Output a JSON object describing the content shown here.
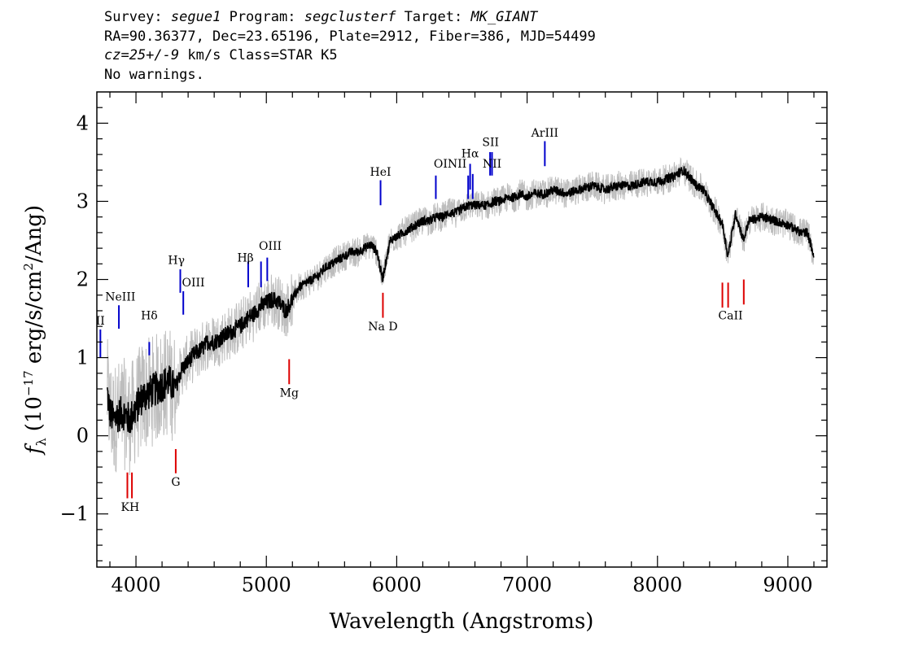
{
  "header": {
    "line1": {
      "survey_label": "Survey:",
      "survey": "segue1",
      "program_label": "Program:",
      "program": "segclusterf",
      "target_label": "Target:",
      "target": "MK_GIANT"
    },
    "line2": "RA=90.36377, Dec=23.65196, Plate=2912, Fiber=386, MJD=54499",
    "line3": {
      "cz": "cz=25+/-9",
      "rest": " km/s Class=STAR K5"
    },
    "line4": "No warnings."
  },
  "colors": {
    "flux": "#000000",
    "noise": "#bdbdbd",
    "emission": "#0000cc",
    "absorption": "#dd0000"
  },
  "chart_data": {
    "type": "line",
    "xlabel": "Wavelength (Angstroms)",
    "ylabel_prefix": "f",
    "ylabel_sub": "λ",
    "ylabel_main": "(10",
    "ylabel_exp": "−17",
    "ylabel_rest1": " erg/s/cm",
    "ylabel_exp2": "2",
    "ylabel_rest2": "/Ang)",
    "xlim": [
      3700,
      9300
    ],
    "ylim": [
      -1.68,
      4.4
    ],
    "x_ticks": [
      "4000",
      "5000",
      "6000",
      "7000",
      "8000",
      "9000"
    ],
    "y_ticks": [
      "−1",
      "0",
      "1",
      "2",
      "3",
      "4"
    ],
    "grid": false,
    "series": [
      {
        "role": "flux",
        "x": [
          3780,
          3800,
          3830,
          3850,
          3900,
          3950,
          4000,
          4050,
          4100,
          4150,
          4200,
          4250,
          4300,
          4350,
          4400,
          4450,
          4500,
          4550,
          4600,
          4650,
          4700,
          4750,
          4800,
          4850,
          4900,
          4950,
          5000,
          5050,
          5100,
          5150,
          5200,
          5250,
          5300,
          5350,
          5400,
          5450,
          5500,
          5550,
          5600,
          5650,
          5700,
          5750,
          5800,
          5850,
          5890,
          5950,
          6000,
          6050,
          6100,
          6150,
          6200,
          6250,
          6300,
          6350,
          6400,
          6450,
          6500,
          6550,
          6600,
          6650,
          6700,
          6750,
          6800,
          6850,
          6900,
          6950,
          7000,
          7050,
          7100,
          7150,
          7200,
          7300,
          7400,
          7500,
          7600,
          7700,
          7800,
          7900,
          8000,
          8100,
          8200,
          8250,
          8300,
          8350,
          8400,
          8450,
          8500,
          8540,
          8600,
          8660,
          8700,
          8800,
          8900,
          9000,
          9100,
          9150,
          9200
        ],
        "y": [
          0.55,
          0.3,
          0.2,
          0.25,
          0.3,
          0.2,
          0.35,
          0.5,
          0.55,
          0.6,
          0.65,
          0.7,
          0.6,
          0.85,
          0.95,
          1.05,
          1.1,
          1.2,
          1.2,
          1.25,
          1.3,
          1.35,
          1.4,
          1.5,
          1.55,
          1.65,
          1.7,
          1.75,
          1.7,
          1.6,
          1.75,
          1.9,
          1.95,
          2.0,
          2.05,
          2.15,
          2.2,
          2.25,
          2.3,
          2.35,
          2.35,
          2.4,
          2.45,
          2.35,
          2.0,
          2.5,
          2.55,
          2.6,
          2.65,
          2.7,
          2.75,
          2.75,
          2.8,
          2.8,
          2.85,
          2.85,
          2.9,
          2.95,
          2.95,
          2.95,
          2.95,
          3.0,
          3.0,
          3.05,
          3.05,
          3.1,
          3.05,
          3.1,
          3.1,
          3.1,
          3.15,
          3.1,
          3.15,
          3.2,
          3.15,
          3.2,
          3.2,
          3.25,
          3.25,
          3.3,
          3.4,
          3.3,
          3.2,
          3.15,
          3.0,
          2.85,
          2.7,
          2.3,
          2.85,
          2.5,
          2.75,
          2.8,
          2.75,
          2.7,
          2.6,
          2.6,
          2.3
        ]
      }
    ],
    "emission_lines": [
      {
        "label": "OII",
        "x": 3727,
        "top": 1.36,
        "bottom": 1.0,
        "label_y": 1.42
      },
      {
        "label": "NeIII",
        "x": 3869,
        "top": 1.67,
        "bottom": 1.37,
        "label_y": 1.73
      },
      {
        "label": "Hδ",
        "x": 4102,
        "top": 1.2,
        "bottom": 1.03,
        "label_y": 1.49
      },
      {
        "label": "Hγ",
        "x": 4340,
        "top": 2.13,
        "bottom": 1.83,
        "label_y": 2.2
      },
      {
        "label": "OIII",
        "x": 4363,
        "top": 1.85,
        "bottom": 1.55,
        "label_y": 1.91
      },
      {
        "label": "Hβ",
        "x": 4861,
        "top": 2.23,
        "bottom": 1.9,
        "label_y": 2.23
      },
      {
        "label": "OIII",
        "x": 4959,
        "top": 2.23,
        "bottom": 1.9,
        "label_y": 2.38
      },
      {
        "label": "OIII",
        "x": 5007,
        "top": 2.28,
        "bottom": 1.98,
        "label_y": 2.38
      },
      {
        "label": "HeI",
        "x": 5876,
        "top": 3.27,
        "bottom": 2.95,
        "label_y": 3.33
      },
      {
        "label": "OI",
        "x": 6300,
        "top": 3.33,
        "bottom": 3.03,
        "label_y": 3.43
      },
      {
        "label": "NII",
        "x": 6548,
        "top": 3.33,
        "bottom": 3.03,
        "label_y": 3.43
      },
      {
        "label": "Hα",
        "x": 6563,
        "top": 3.48,
        "bottom": 3.15,
        "label_y": 3.56
      },
      {
        "label": "NII",
        "x": 6583,
        "top": 3.35,
        "bottom": 3.03,
        "label_y": 3.43
      },
      {
        "label": "SII",
        "x": 6716,
        "top": 3.63,
        "bottom": 3.33,
        "label_y": 3.71
      },
      {
        "label": "SII",
        "x": 6731,
        "top": 3.63,
        "bottom": 3.33,
        "label_y": 3.71
      },
      {
        "label": "ArIII",
        "x": 7136,
        "top": 3.77,
        "bottom": 3.45,
        "label_y": 3.83
      }
    ],
    "absorption_lines": [
      {
        "label": "K",
        "x": 3934,
        "top": -0.47,
        "bottom": -0.8,
        "label_y": -0.96
      },
      {
        "label": "H",
        "x": 3969,
        "top": -0.47,
        "bottom": -0.8,
        "label_y": -0.96
      },
      {
        "label": "G",
        "x": 4305,
        "top": -0.17,
        "bottom": -0.48,
        "label_y": -0.64
      },
      {
        "label": "Mg",
        "x": 5175,
        "top": 0.98,
        "bottom": 0.66,
        "label_y": 0.5
      },
      {
        "label": "Na D",
        "x": 5894,
        "top": 1.83,
        "bottom": 1.51,
        "label_y": 1.35
      },
      {
        "label": "CaII",
        "x": 8498,
        "top": 1.96,
        "bottom": 1.64,
        "label_y": 1.49
      },
      {
        "label": "CaII",
        "x": 8542,
        "top": 1.96,
        "bottom": 1.64,
        "label_y": 1.49
      },
      {
        "label": "CaII",
        "x": 8662,
        "top": 2.0,
        "bottom": 1.68,
        "label_y": 1.49
      }
    ],
    "line_label_texts": {
      "OII": "II",
      "NeIII": "NeIII",
      "Hδ": "Hδ",
      "Hγ": "Hγ",
      "OIII": "OIII",
      "Hβ": "Hβ",
      "HeI": "HeI",
      "OINII": "OINII",
      "Hα": "Hα",
      "NII": "NII",
      "SII": "SII",
      "ArIII": "ArIII",
      "KH": "KH",
      "G": "G",
      "Mg": "Mg",
      "NaD": "Na D",
      "CaII": "CaII"
    }
  }
}
